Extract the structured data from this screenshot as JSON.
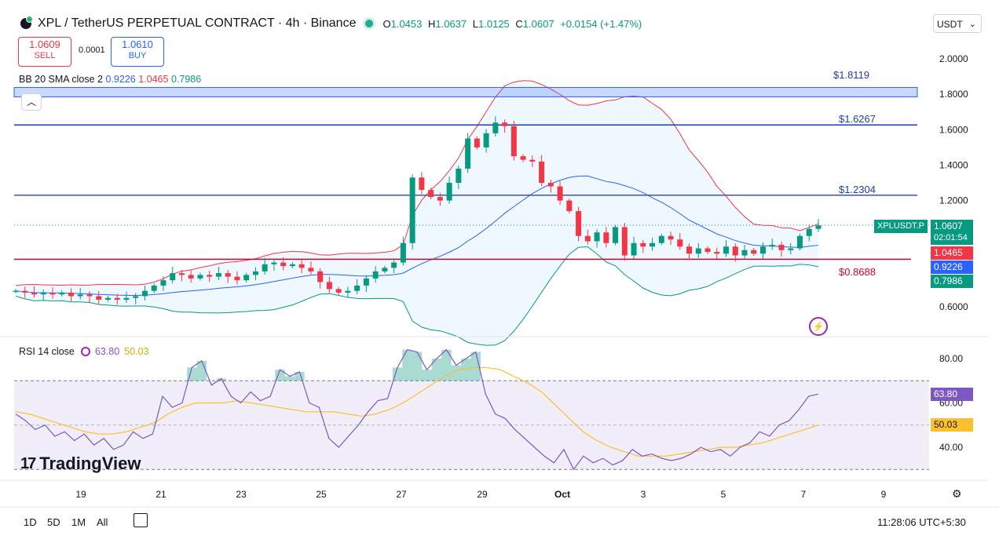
{
  "header": {
    "pair": "XPL / TetherUS PERPETUAL CONTRACT · 4h · Binance",
    "o_label": "O",
    "o": "1.0453",
    "h_label": "H",
    "h": "1.0637",
    "l_label": "L",
    "l": "1.0125",
    "c_label": "C",
    "c": "1.0607",
    "change": "+0.0154 (+1.47%)"
  },
  "trade": {
    "sell_price": "1.0609",
    "sell_label": "SELL",
    "spread": "0.0001",
    "buy_price": "1.0610",
    "buy_label": "BUY"
  },
  "currency": "USDT",
  "indicators": {
    "bb_label": "BB 20 SMA close 2",
    "bb_basis": "0.9226",
    "bb_upper": "1.0465",
    "bb_lower": "0.7986",
    "rsi_label": "RSI 14 close",
    "rsi_value": "63.80",
    "rsi_ma": "50.03"
  },
  "price_axis": [
    "2.0000",
    "1.8000",
    "1.6000",
    "1.4000",
    "1.2000",
    "0.6000"
  ],
  "rsi_axis": [
    "80.00",
    "60.00",
    "40.00"
  ],
  "horizontal_lines": {
    "l1": "$1.8119",
    "l2": "$1.6267",
    "l3": "$1.2304",
    "l4": "$0.8688"
  },
  "tags": {
    "symbol": "XPLUSDT.P",
    "price": "1.0607",
    "countdown": "02:01:54",
    "bb_upper": "1.0465",
    "bb_basis": "0.9226",
    "bb_lower": "0.7986",
    "rsi": "63.80",
    "rsi_ma": "50.03"
  },
  "time_axis": [
    "19",
    "21",
    "23",
    "25",
    "27",
    "29",
    "Oct",
    "3",
    "5",
    "7",
    "9"
  ],
  "bottom": {
    "ranges": [
      "1D",
      "5D",
      "1M",
      "All"
    ],
    "clock": "11:28:06 UTC+5:30"
  },
  "watermark": "TradingView",
  "colors": {
    "up": "#089981",
    "down": "#f23645",
    "bb_upper": "#f23645",
    "bb_lower": "#089981",
    "bb_basis": "#2962ff",
    "rsi": "#7e57c2",
    "rsi_ma": "#fbc02d",
    "hline_blue": "#1e3fa3",
    "hline_red": "#d50032"
  },
  "chart_data": [
    {
      "type": "candlestick",
      "title": "XPL / TetherUS PERPETUAL CONTRACT · 4h · Binance",
      "x_ticks": [
        "19",
        "21",
        "23",
        "25",
        "27",
        "29",
        "Oct",
        "3",
        "5",
        "7",
        "9"
      ],
      "ylim": [
        0.5,
        2.05
      ],
      "last": {
        "o": 1.0453,
        "h": 1.0637,
        "l": 1.0125,
        "c": 1.0607
      },
      "close_series": [
        0.69,
        0.68,
        0.67,
        0.68,
        0.67,
        0.68,
        0.66,
        0.67,
        0.66,
        0.64,
        0.65,
        0.64,
        0.65,
        0.66,
        0.69,
        0.72,
        0.75,
        0.79,
        0.78,
        0.76,
        0.78,
        0.77,
        0.79,
        0.77,
        0.75,
        0.78,
        0.8,
        0.84,
        0.85,
        0.83,
        0.84,
        0.82,
        0.8,
        0.74,
        0.7,
        0.68,
        0.69,
        0.72,
        0.76,
        0.8,
        0.82,
        0.85,
        0.96,
        1.33,
        1.26,
        1.22,
        1.2,
        1.3,
        1.38,
        1.55,
        1.5,
        1.58,
        1.64,
        1.62,
        1.45,
        1.43,
        1.42,
        1.3,
        1.28,
        1.2,
        1.14,
        1.0,
        0.97,
        1.02,
        0.96,
        1.05,
        0.89,
        0.96,
        0.94,
        0.96,
        1.0,
        0.98,
        0.94,
        0.9,
        0.93,
        0.91,
        0.9,
        0.94,
        0.89,
        0.92,
        0.9,
        0.94,
        0.95,
        0.92,
        0.93,
        1.0,
        1.04,
        1.06
      ],
      "bollinger": {
        "basis": 0.9226,
        "upper": 1.0465,
        "lower": 0.7986
      },
      "horizontal_lines": [
        1.8119,
        1.6267,
        1.2304,
        0.8688
      ]
    },
    {
      "type": "line",
      "title": "RSI 14 close",
      "ylim": [
        26,
        90
      ],
      "y_ticks": [
        80,
        60,
        40
      ],
      "bands": [
        70,
        30
      ],
      "series": [
        {
          "name": "RSI",
          "values": [
            55,
            52,
            48,
            50,
            45,
            47,
            43,
            46,
            41,
            44,
            39,
            41,
            47,
            44,
            46,
            63,
            58,
            60,
            76,
            79,
            68,
            71,
            63,
            60,
            65,
            61,
            63,
            75,
            72,
            74,
            60,
            58,
            44,
            40,
            45,
            50,
            56,
            61,
            62,
            76,
            84,
            83,
            75,
            80,
            84,
            77,
            80,
            83,
            64,
            55,
            53,
            48,
            44,
            40,
            36,
            33,
            39,
            30,
            36,
            33,
            35,
            32,
            34,
            39,
            36,
            37,
            35,
            34,
            35,
            37,
            40,
            38,
            39,
            36,
            40,
            42,
            47,
            45,
            50,
            52,
            57,
            63,
            64
          ]
        },
        {
          "name": "RSI MA",
          "values": [
            56,
            55,
            53,
            51,
            49,
            47,
            46,
            46,
            47,
            49,
            51,
            55,
            58,
            60,
            60,
            60,
            61,
            60,
            59,
            58,
            57,
            56,
            56,
            56,
            55,
            54,
            55,
            57,
            60,
            64,
            68,
            72,
            75,
            76,
            76,
            75,
            72,
            69,
            65,
            59,
            53,
            47,
            43,
            40,
            38,
            36,
            36,
            36,
            37,
            38,
            39,
            40,
            40,
            41,
            42,
            44,
            46,
            48,
            50
          ]
        }
      ],
      "last": {
        "rsi": 63.8,
        "ma": 50.03
      }
    }
  ]
}
